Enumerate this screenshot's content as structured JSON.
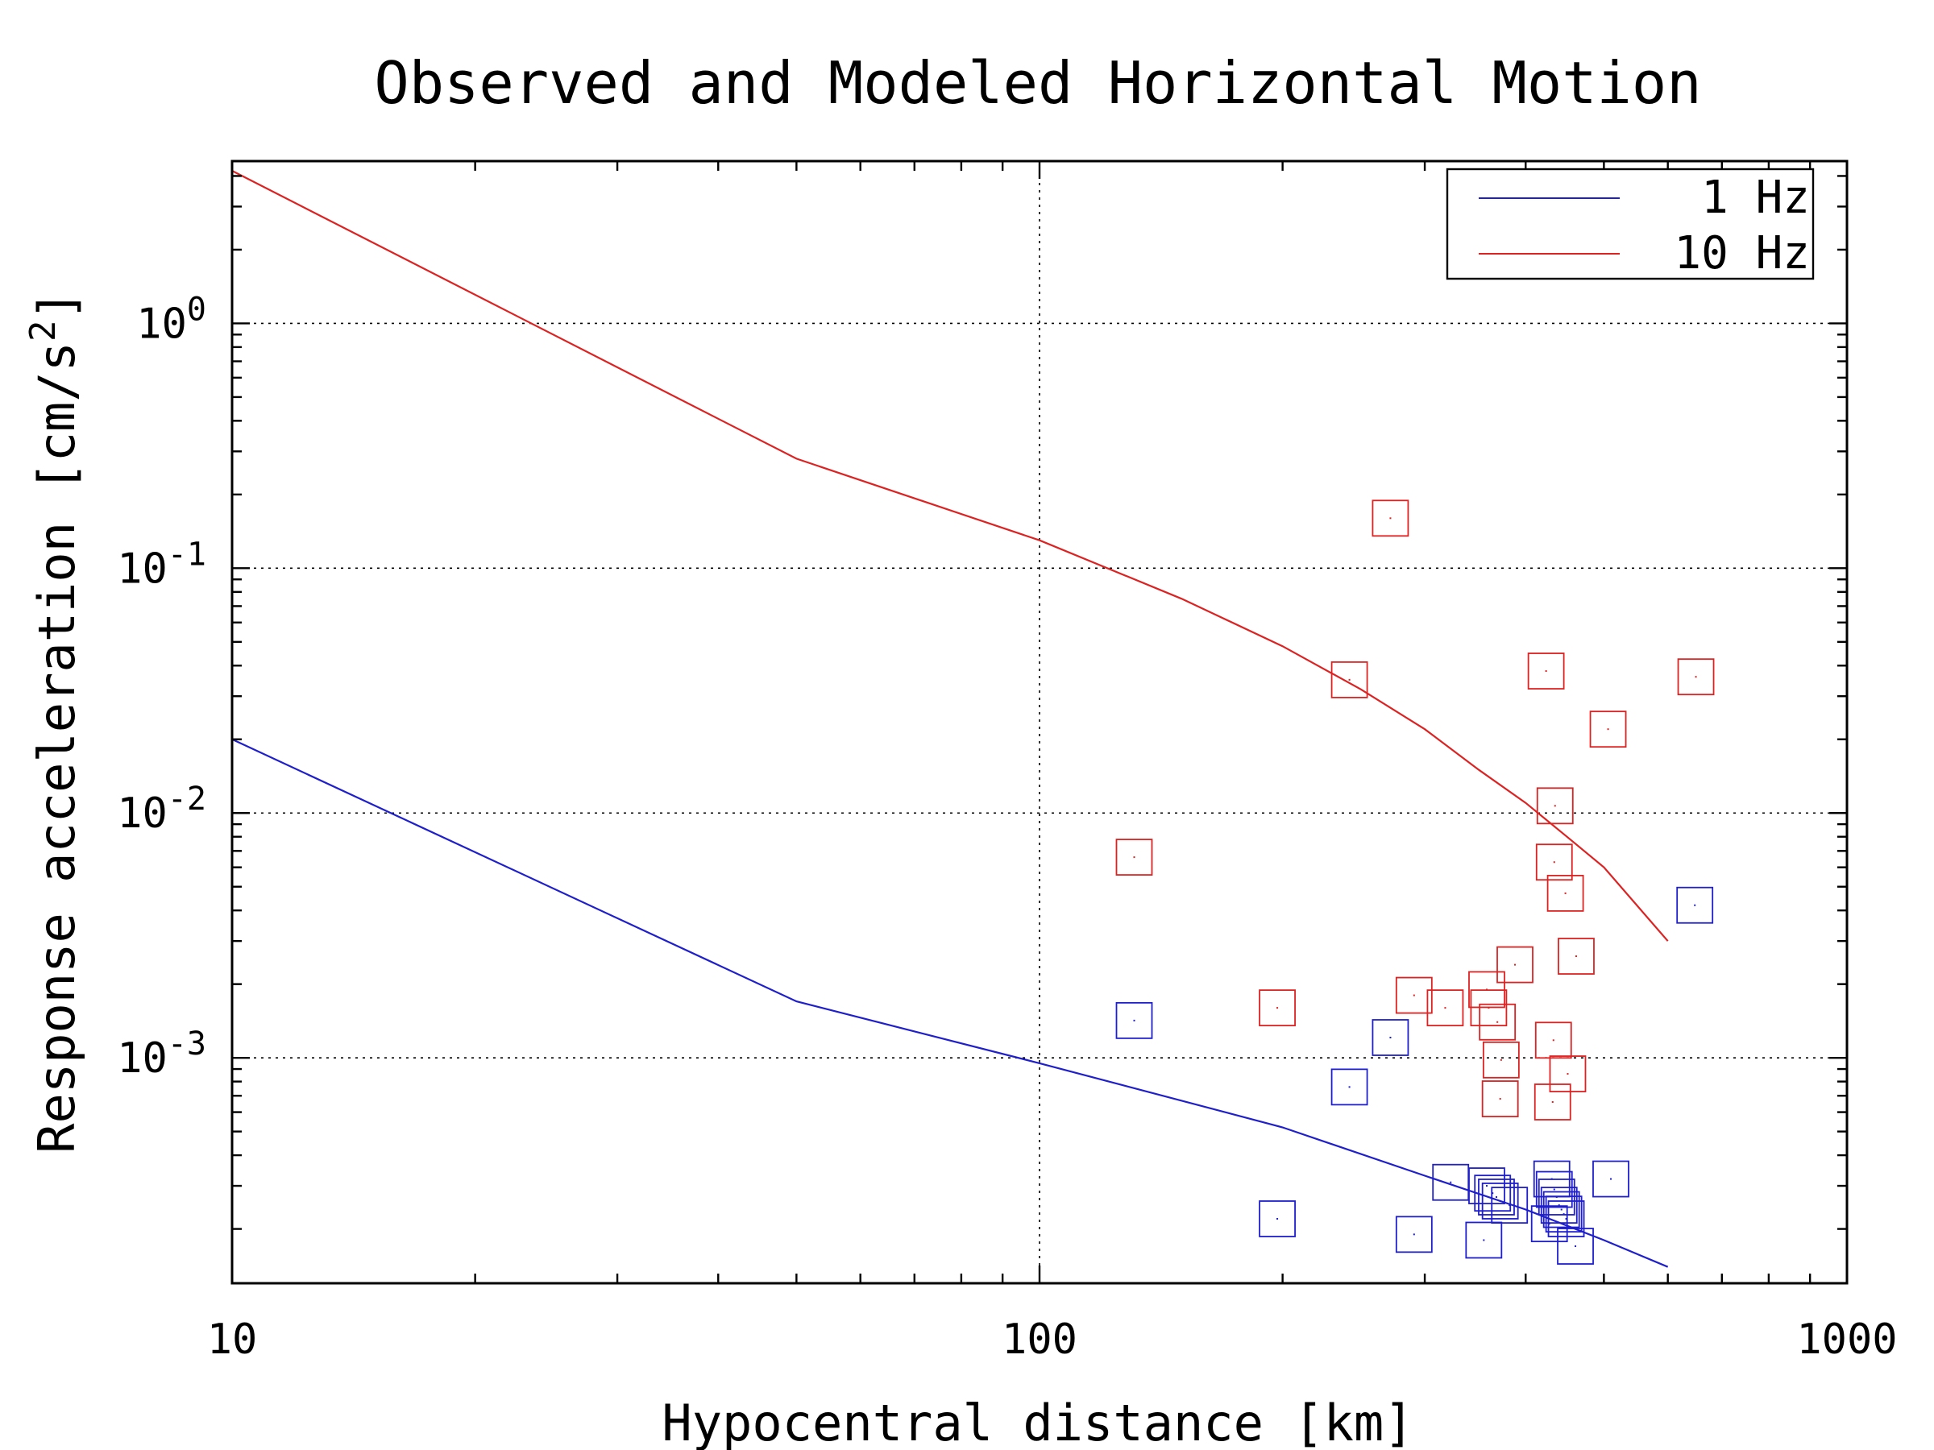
{
  "chart_data": {
    "type": "line",
    "title": "Observed and Modeled Horizontal Motion",
    "xlabel": "Hypocentral distance [km]",
    "ylabel": "Response acceleration [cm/s",
    "ylabel_sup": "2",
    "ylabel_tail": "]",
    "x_scale": "log",
    "y_scale": "log",
    "xlim": [
      10,
      1000
    ],
    "ylim": [
      0.00012,
      4.6
    ],
    "x_ticks": [
      {
        "value": 10,
        "label": "10"
      },
      {
        "value": 100,
        "label": "100"
      },
      {
        "value": 1000,
        "label": "1000"
      }
    ],
    "y_ticks": [
      {
        "value": 0.001,
        "base": "10",
        "exp": "-3"
      },
      {
        "value": 0.01,
        "base": "10",
        "exp": "-2"
      },
      {
        "value": 0.1,
        "base": "10",
        "exp": "-1"
      },
      {
        "value": 1,
        "base": "10",
        "exp": "0"
      }
    ],
    "grid": true,
    "legend_position": "top-right",
    "colors": {
      "blue": "#1f1fcc",
      "red": "#dd2222"
    },
    "series": [
      {
        "name": "1 Hz",
        "color": "#1f1fcc",
        "x": [
          10,
          50,
          100,
          200,
          300,
          400,
          500,
          600
        ],
        "y": [
          0.02,
          0.0017,
          0.00095,
          0.00052,
          0.00033,
          0.00024,
          0.00018,
          0.00014
        ]
      },
      {
        "name": "10 Hz",
        "color": "#dd2222",
        "x": [
          10,
          50,
          100,
          150,
          200,
          250,
          300,
          350,
          400,
          450,
          500,
          600
        ],
        "y": [
          4.2,
          0.28,
          0.13,
          0.075,
          0.048,
          0.032,
          0.022,
          0.015,
          0.011,
          0.008,
          0.006,
          0.003
        ]
      }
    ],
    "observed": [
      {
        "color": "#1f1fcc",
        "points": [
          [
            131,
            0.00142
          ],
          [
            272,
            0.00121
          ],
          [
            242,
            0.00076
          ],
          [
            197,
            0.00022
          ],
          [
            291,
            0.00019
          ],
          [
            323,
            0.00031
          ],
          [
            358,
            0.0003
          ],
          [
            364,
            0.00028
          ],
          [
            368,
            0.00027
          ],
          [
            372,
            0.00026
          ],
          [
            382,
            0.00025
          ],
          [
            355,
            0.00018
          ],
          [
            431,
            0.00032
          ],
          [
            434,
            0.00029
          ],
          [
            437,
            0.00027
          ],
          [
            440,
            0.00025
          ],
          [
            443,
            0.00024
          ],
          [
            446,
            0.00023
          ],
          [
            449,
            0.00022
          ],
          [
            428,
            0.00021
          ],
          [
            461,
            0.00017
          ],
          [
            510,
            0.00032
          ],
          [
            648,
            0.0042
          ]
        ]
      },
      {
        "color": "#dd2222",
        "points": [
          [
            131,
            0.0066
          ],
          [
            197,
            0.0016
          ],
          [
            242,
            0.035
          ],
          [
            272,
            0.16
          ],
          [
            291,
            0.0018
          ],
          [
            318,
            0.0016
          ],
          [
            358,
            0.0019
          ],
          [
            360,
            0.0016
          ],
          [
            369,
            0.0014
          ],
          [
            373,
            0.00098
          ],
          [
            372,
            0.00068
          ],
          [
            388,
            0.0024
          ],
          [
            424,
            0.038
          ],
          [
            435,
            0.0107
          ],
          [
            434,
            0.0063
          ],
          [
            448,
            0.0047
          ],
          [
            433,
            0.00118
          ],
          [
            432,
            0.00066
          ],
          [
            451,
            0.00086
          ],
          [
            462,
            0.0026
          ],
          [
            506,
            0.022
          ],
          [
            650,
            0.036
          ]
        ]
      }
    ]
  }
}
